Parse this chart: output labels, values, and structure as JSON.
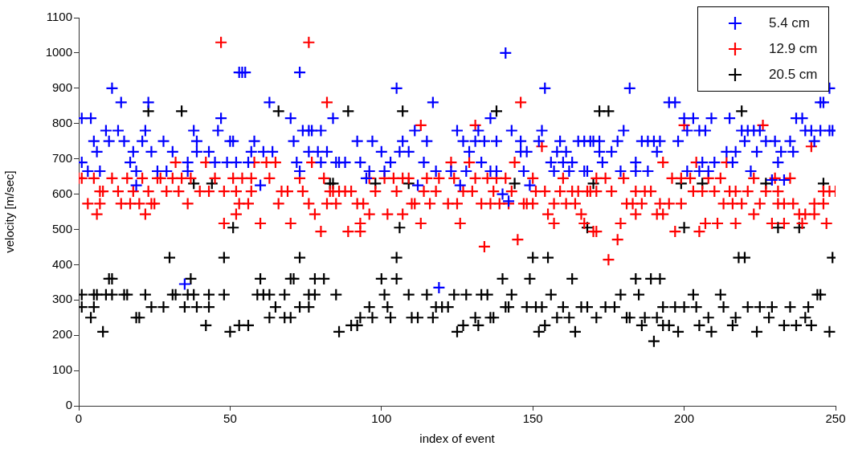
{
  "chart_data": {
    "type": "scatter",
    "xlabel": "index of event",
    "ylabel": "velocity [m/sec]",
    "xlim": [
      0,
      250
    ],
    "xticks": [
      0,
      50,
      100,
      150,
      200,
      250
    ],
    "ylim": [
      0,
      1100
    ],
    "yticks": [
      0,
      100,
      200,
      300,
      400,
      500,
      600,
      700,
      800,
      900,
      1000,
      1100
    ],
    "grid": false,
    "legend": "top right",
    "marker": "cross",
    "series": [
      {
        "name": "5.4 cm",
        "color": "#0000ff",
        "x": [
          1,
          4,
          11,
          14,
          23,
          9,
          13,
          22,
          5,
          10,
          15,
          21,
          28,
          6,
          18,
          24,
          31,
          1,
          17,
          26,
          29,
          3,
          7,
          19,
          19,
          38,
          39,
          39,
          43,
          36,
          36,
          47,
          46,
          50,
          51,
          45,
          49,
          52,
          53,
          54,
          55,
          56,
          57,
          58,
          61,
          64,
          63,
          60,
          70,
          73,
          71,
          72,
          73,
          74,
          76,
          77,
          80,
          76,
          79,
          82,
          80,
          84,
          85,
          35,
          119,
          141,
          105,
          154,
          117,
          136,
          111,
          125,
          132,
          143,
          153,
          92,
          97,
          107,
          115,
          127,
          131,
          134,
          138,
          146,
          152,
          159,
          165,
          167,
          100,
          106,
          109,
          129,
          146,
          148,
          158,
          161,
          86,
          88,
          93,
          103,
          114,
          133,
          156,
          160,
          163,
          96,
          101,
          118,
          123,
          128,
          136,
          138,
          147,
          157,
          162,
          167,
          95,
          112,
          126,
          149,
          140,
          142,
          182,
          248,
          195,
          197,
          245,
          246,
          200,
          203,
          209,
          215,
          237,
          239,
          180,
          201,
          205,
          207,
          219,
          221,
          223,
          225,
          240,
          242,
          245,
          248,
          249,
          169,
          170,
          172,
          178,
          186,
          188,
          190,
          192,
          198,
          220,
          227,
          230,
          235,
          243,
          172,
          176,
          191,
          214,
          217,
          224,
          232,
          236,
          173,
          184,
          206,
          210,
          216,
          231,
          168,
          179,
          184,
          188,
          201,
          205,
          208,
          222,
          229,
          233
        ],
        "values": [
          815,
          815,
          900,
          860,
          860,
          780,
          780,
          780,
          750,
          750,
          750,
          750,
          750,
          720,
          720,
          720,
          720,
          690,
          690,
          665,
          665,
          665,
          665,
          665,
          625,
          780,
          750,
          720,
          720,
          690,
          665,
          815,
          780,
          750,
          750,
          690,
          690,
          690,
          945,
          945,
          945,
          690,
          720,
          750,
          720,
          720,
          860,
          625,
          815,
          945,
          750,
          690,
          665,
          780,
          780,
          780,
          780,
          720,
          720,
          720,
          690,
          815,
          690,
          345,
          335,
          1000,
          900,
          900,
          860,
          815,
          780,
          780,
          780,
          780,
          780,
          750,
          750,
          750,
          750,
          750,
          750,
          750,
          750,
          750,
          750,
          750,
          750,
          750,
          720,
          720,
          720,
          720,
          720,
          720,
          720,
          720,
          690,
          690,
          690,
          690,
          690,
          690,
          690,
          690,
          690,
          665,
          665,
          665,
          665,
          665,
          665,
          665,
          665,
          665,
          665,
          665,
          645,
          625,
          625,
          625,
          600,
          580,
          900,
          900,
          860,
          860,
          860,
          860,
          815,
          815,
          815,
          815,
          815,
          815,
          780,
          780,
          780,
          780,
          780,
          780,
          780,
          780,
          780,
          780,
          780,
          780,
          780,
          750,
          750,
          750,
          750,
          750,
          750,
          750,
          750,
          750,
          750,
          750,
          750,
          750,
          750,
          720,
          720,
          720,
          720,
          720,
          720,
          720,
          720,
          690,
          690,
          690,
          690,
          690,
          690,
          665,
          665,
          665,
          665,
          665,
          665,
          665,
          665,
          640,
          640
        ]
      },
      {
        "name": "12.9 cm",
        "color": "#ff0000",
        "x": [
          47,
          76,
          82,
          32,
          42,
          58,
          62,
          65,
          77,
          0,
          1,
          5,
          11,
          16,
          21,
          26,
          27,
          31,
          34,
          37,
          45,
          51,
          54,
          57,
          63,
          73,
          81,
          7,
          8,
          13,
          18,
          23,
          29,
          33,
          40,
          43,
          48,
          52,
          57,
          67,
          69,
          74,
          84,
          3,
          7,
          14,
          17,
          20,
          24,
          25,
          36,
          53,
          56,
          66,
          76,
          82,
          6,
          22,
          52,
          78,
          48,
          60,
          70,
          80,
          146,
          113,
          131,
          153,
          123,
          129,
          144,
          96,
          101,
          104,
          107,
          109,
          115,
          119,
          124,
          131,
          135,
          138,
          141,
          150,
          160,
          83,
          86,
          88,
          90,
          98,
          105,
          114,
          118,
          127,
          130,
          137,
          143,
          151,
          154,
          159,
          163,
          165,
          168,
          85,
          92,
          94,
          110,
          111,
          116,
          122,
          125,
          133,
          136,
          139,
          142,
          147,
          148,
          150,
          157,
          161,
          164,
          96,
          102,
          107,
          155,
          166,
          93,
          113,
          126,
          157,
          167,
          89,
          93,
          170,
          145,
          134,
          200,
          226,
          242,
          193,
          204,
          214,
          171,
          174,
          180,
          196,
          199,
          202,
          208,
          212,
          223,
          230,
          235,
          169,
          171,
          176,
          184,
          187,
          189,
          203,
          206,
          210,
          215,
          217,
          221,
          227,
          231,
          246,
          248,
          250,
          181,
          183,
          186,
          192,
          195,
          199,
          213,
          216,
          219,
          225,
          231,
          233,
          236,
          243,
          246,
          184,
          191,
          193,
          223,
          238,
          240,
          243,
          179,
          207,
          211,
          217,
          229,
          233,
          239,
          247,
          171,
          197,
          205,
          178,
          175
        ],
        "values": [
          1030,
          1030,
          860,
          690,
          690,
          690,
          690,
          690,
          690,
          645,
          645,
          645,
          645,
          645,
          645,
          645,
          645,
          645,
          645,
          645,
          645,
          645,
          645,
          645,
          645,
          645,
          645,
          608,
          608,
          608,
          608,
          608,
          608,
          608,
          608,
          608,
          608,
          608,
          608,
          608,
          608,
          608,
          608,
          573,
          573,
          573,
          573,
          573,
          573,
          573,
          573,
          573,
          573,
          573,
          573,
          573,
          543,
          543,
          543,
          543,
          517,
          517,
          517,
          494,
          860,
          795,
          795,
          735,
          690,
          690,
          690,
          645,
          645,
          645,
          645,
          645,
          645,
          645,
          645,
          645,
          645,
          645,
          645,
          645,
          645,
          608,
          608,
          608,
          608,
          608,
          608,
          608,
          608,
          608,
          608,
          608,
          608,
          608,
          608,
          608,
          608,
          608,
          608,
          573,
          573,
          573,
          573,
          573,
          573,
          573,
          573,
          573,
          573,
          573,
          573,
          573,
          573,
          573,
          573,
          573,
          573,
          543,
          543,
          543,
          543,
          543,
          517,
          517,
          517,
          517,
          517,
          494,
          494,
          494,
          471,
          451,
          795,
          795,
          735,
          690,
          690,
          690,
          645,
          645,
          645,
          645,
          645,
          645,
          645,
          645,
          645,
          645,
          645,
          608,
          608,
          608,
          608,
          608,
          608,
          608,
          608,
          608,
          608,
          608,
          608,
          608,
          608,
          608,
          608,
          608,
          573,
          573,
          573,
          573,
          573,
          573,
          573,
          573,
          573,
          573,
          573,
          573,
          573,
          573,
          573,
          543,
          543,
          543,
          543,
          543,
          543,
          543,
          517,
          517,
          517,
          517,
          517,
          517,
          517,
          517,
          494,
          494,
          494,
          471,
          414
        ]
      },
      {
        "name": "20.5 cm",
        "color": "#000000",
        "x": [
          23,
          34,
          66,
          89,
          107,
          138,
          172,
          175,
          219,
          38,
          44,
          83,
          84,
          98,
          109,
          144,
          170,
          199,
          206,
          227,
          246,
          51,
          106,
          168,
          200,
          231,
          238,
          30,
          48,
          73,
          105,
          150,
          155,
          218,
          220,
          249,
          10,
          11,
          37,
          60,
          70,
          71,
          78,
          81,
          100,
          105,
          140,
          149,
          163,
          184,
          189,
          192,
          1,
          5,
          6,
          9,
          11,
          15,
          16,
          22,
          31,
          32,
          36,
          38,
          43,
          48,
          59,
          61,
          63,
          68,
          76,
          78,
          85,
          101,
          109,
          115,
          124,
          128,
          133,
          135,
          143,
          156,
          179,
          185,
          203,
          212,
          244,
          245,
          1,
          5,
          24,
          28,
          35,
          39,
          43,
          65,
          73,
          76,
          96,
          102,
          118,
          120,
          122,
          141,
          142,
          148,
          151,
          153,
          160,
          166,
          168,
          174,
          177,
          193,
          197,
          200,
          204,
          213,
          221,
          225,
          229,
          235,
          241,
          4,
          19,
          20,
          63,
          68,
          70,
          93,
          97,
          103,
          110,
          112,
          117,
          131,
          136,
          137,
          158,
          162,
          171,
          181,
          182,
          187,
          191,
          208,
          217,
          228,
          240,
          42,
          53,
          56,
          90,
          92,
          127,
          132,
          154,
          186,
          193,
          195,
          205,
          216,
          233,
          237,
          242,
          8,
          50,
          86,
          125,
          152,
          164,
          198,
          209,
          224,
          248,
          190
        ],
        "values": [
          835,
          835,
          835,
          835,
          835,
          835,
          835,
          835,
          835,
          630,
          630,
          630,
          630,
          630,
          630,
          630,
          630,
          630,
          630,
          630,
          630,
          505,
          505,
          505,
          505,
          505,
          505,
          420,
          420,
          420,
          420,
          420,
          420,
          420,
          420,
          420,
          360,
          360,
          360,
          360,
          360,
          360,
          360,
          360,
          360,
          360,
          360,
          360,
          360,
          360,
          360,
          360,
          315,
          315,
          315,
          315,
          315,
          315,
          315,
          315,
          315,
          315,
          315,
          315,
          315,
          315,
          315,
          315,
          315,
          315,
          315,
          315,
          315,
          315,
          315,
          315,
          315,
          315,
          315,
          315,
          315,
          315,
          315,
          315,
          315,
          315,
          315,
          315,
          280,
          280,
          280,
          280,
          280,
          280,
          280,
          280,
          280,
          280,
          280,
          280,
          280,
          280,
          280,
          280,
          280,
          280,
          280,
          280,
          280,
          280,
          280,
          280,
          280,
          280,
          280,
          280,
          280,
          280,
          280,
          280,
          280,
          280,
          280,
          250,
          250,
          250,
          250,
          250,
          250,
          250,
          250,
          250,
          250,
          250,
          250,
          250,
          250,
          250,
          250,
          250,
          250,
          250,
          250,
          250,
          250,
          250,
          250,
          250,
          250,
          228,
          228,
          228,
          228,
          228,
          228,
          228,
          228,
          228,
          228,
          228,
          228,
          228,
          228,
          228,
          228,
          210,
          210,
          210,
          210,
          210,
          210,
          210,
          210,
          210,
          210,
          183
        ]
      }
    ]
  }
}
